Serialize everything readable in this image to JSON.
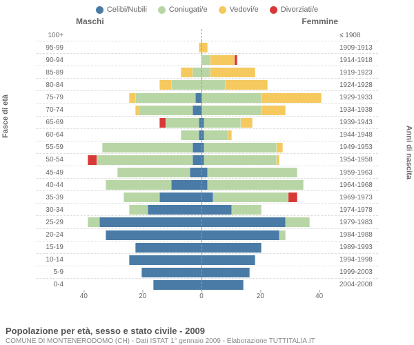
{
  "type": "population-pyramid",
  "title": "Popolazione per età, sesso e stato civile - 2009",
  "subtitle": "COMUNE DI MONTENERODOMO (CH) - Dati ISTAT 1° gennaio 2009 - Elaborazione TUTTITALIA.IT",
  "male_label": "Maschi",
  "female_label": "Femmine",
  "y_left_axis_title": "Fasce di età",
  "y_right_axis_title": "Anni di nascita",
  "x_axis": {
    "max": 45,
    "ticks": [
      40,
      20,
      0,
      20,
      40
    ]
  },
  "legend": [
    {
      "label": "Celibi/Nubili",
      "color": "#4a7ba6"
    },
    {
      "label": "Coniugati/e",
      "color": "#b8d6a5"
    },
    {
      "label": "Vedovi/e",
      "color": "#f5c95e"
    },
    {
      "label": "Divorziati/e",
      "color": "#d73a36"
    }
  ],
  "colors": {
    "single": "#4a7ba6",
    "married": "#b8d6a5",
    "widowed": "#f5c95e",
    "divorced": "#d73a36",
    "grid": "#dddddd",
    "center": "#999999",
    "bg": "#ffffff"
  },
  "rows": [
    {
      "age": "100+",
      "birth": "≤ 1908",
      "m": [
        0,
        0,
        0,
        0
      ],
      "f": [
        0,
        0,
        0,
        0
      ]
    },
    {
      "age": "95-99",
      "birth": "1909-1913",
      "m": [
        0,
        0,
        1,
        0
      ],
      "f": [
        0,
        0,
        2,
        0
      ]
    },
    {
      "age": "90-94",
      "birth": "1914-1918",
      "m": [
        0,
        0,
        0,
        0
      ],
      "f": [
        0,
        3,
        8,
        1
      ]
    },
    {
      "age": "85-89",
      "birth": "1919-1923",
      "m": [
        0,
        3,
        4,
        0
      ],
      "f": [
        0,
        3,
        15,
        0
      ]
    },
    {
      "age": "80-84",
      "birth": "1924-1928",
      "m": [
        0,
        10,
        4,
        0
      ],
      "f": [
        0,
        8,
        14,
        0
      ]
    },
    {
      "age": "75-79",
      "birth": "1929-1933",
      "m": [
        2,
        20,
        2,
        0
      ],
      "f": [
        0,
        20,
        20,
        0
      ]
    },
    {
      "age": "70-74",
      "birth": "1934-1938",
      "m": [
        3,
        18,
        1,
        0
      ],
      "f": [
        0,
        20,
        8,
        0
      ]
    },
    {
      "age": "65-69",
      "birth": "1939-1943",
      "m": [
        1,
        11,
        0,
        2
      ],
      "f": [
        1,
        12,
        4,
        0
      ]
    },
    {
      "age": "60-64",
      "birth": "1944-1948",
      "m": [
        1,
        6,
        0,
        0
      ],
      "f": [
        1,
        8,
        1,
        0
      ]
    },
    {
      "age": "55-59",
      "birth": "1949-1953",
      "m": [
        3,
        30,
        0,
        0
      ],
      "f": [
        1,
        24,
        2,
        0
      ]
    },
    {
      "age": "50-54",
      "birth": "1954-1958",
      "m": [
        3,
        32,
        0,
        3
      ],
      "f": [
        1,
        24,
        1,
        0
      ]
    },
    {
      "age": "45-49",
      "birth": "1959-1963",
      "m": [
        4,
        24,
        0,
        0
      ],
      "f": [
        2,
        30,
        0,
        0
      ]
    },
    {
      "age": "40-44",
      "birth": "1964-1968",
      "m": [
        10,
        22,
        0,
        0
      ],
      "f": [
        2,
        32,
        0,
        0
      ]
    },
    {
      "age": "35-39",
      "birth": "1969-1973",
      "m": [
        14,
        12,
        0,
        0
      ],
      "f": [
        4,
        25,
        0,
        3
      ]
    },
    {
      "age": "30-34",
      "birth": "1974-1978",
      "m": [
        18,
        6,
        0,
        0
      ],
      "f": [
        10,
        10,
        0,
        0
      ]
    },
    {
      "age": "25-29",
      "birth": "1979-1983",
      "m": [
        34,
        4,
        0,
        0
      ],
      "f": [
        28,
        8,
        0,
        0
      ]
    },
    {
      "age": "20-24",
      "birth": "1984-1988",
      "m": [
        32,
        0,
        0,
        0
      ],
      "f": [
        26,
        2,
        0,
        0
      ]
    },
    {
      "age": "15-19",
      "birth": "1989-1993",
      "m": [
        22,
        0,
        0,
        0
      ],
      "f": [
        20,
        0,
        0,
        0
      ]
    },
    {
      "age": "10-14",
      "birth": "1994-1998",
      "m": [
        24,
        0,
        0,
        0
      ],
      "f": [
        18,
        0,
        0,
        0
      ]
    },
    {
      "age": "5-9",
      "birth": "1999-2003",
      "m": [
        20,
        0,
        0,
        0
      ],
      "f": [
        16,
        0,
        0,
        0
      ]
    },
    {
      "age": "0-4",
      "birth": "2004-2008",
      "m": [
        16,
        0,
        0,
        0
      ],
      "f": [
        14,
        0,
        0,
        0
      ]
    }
  ]
}
